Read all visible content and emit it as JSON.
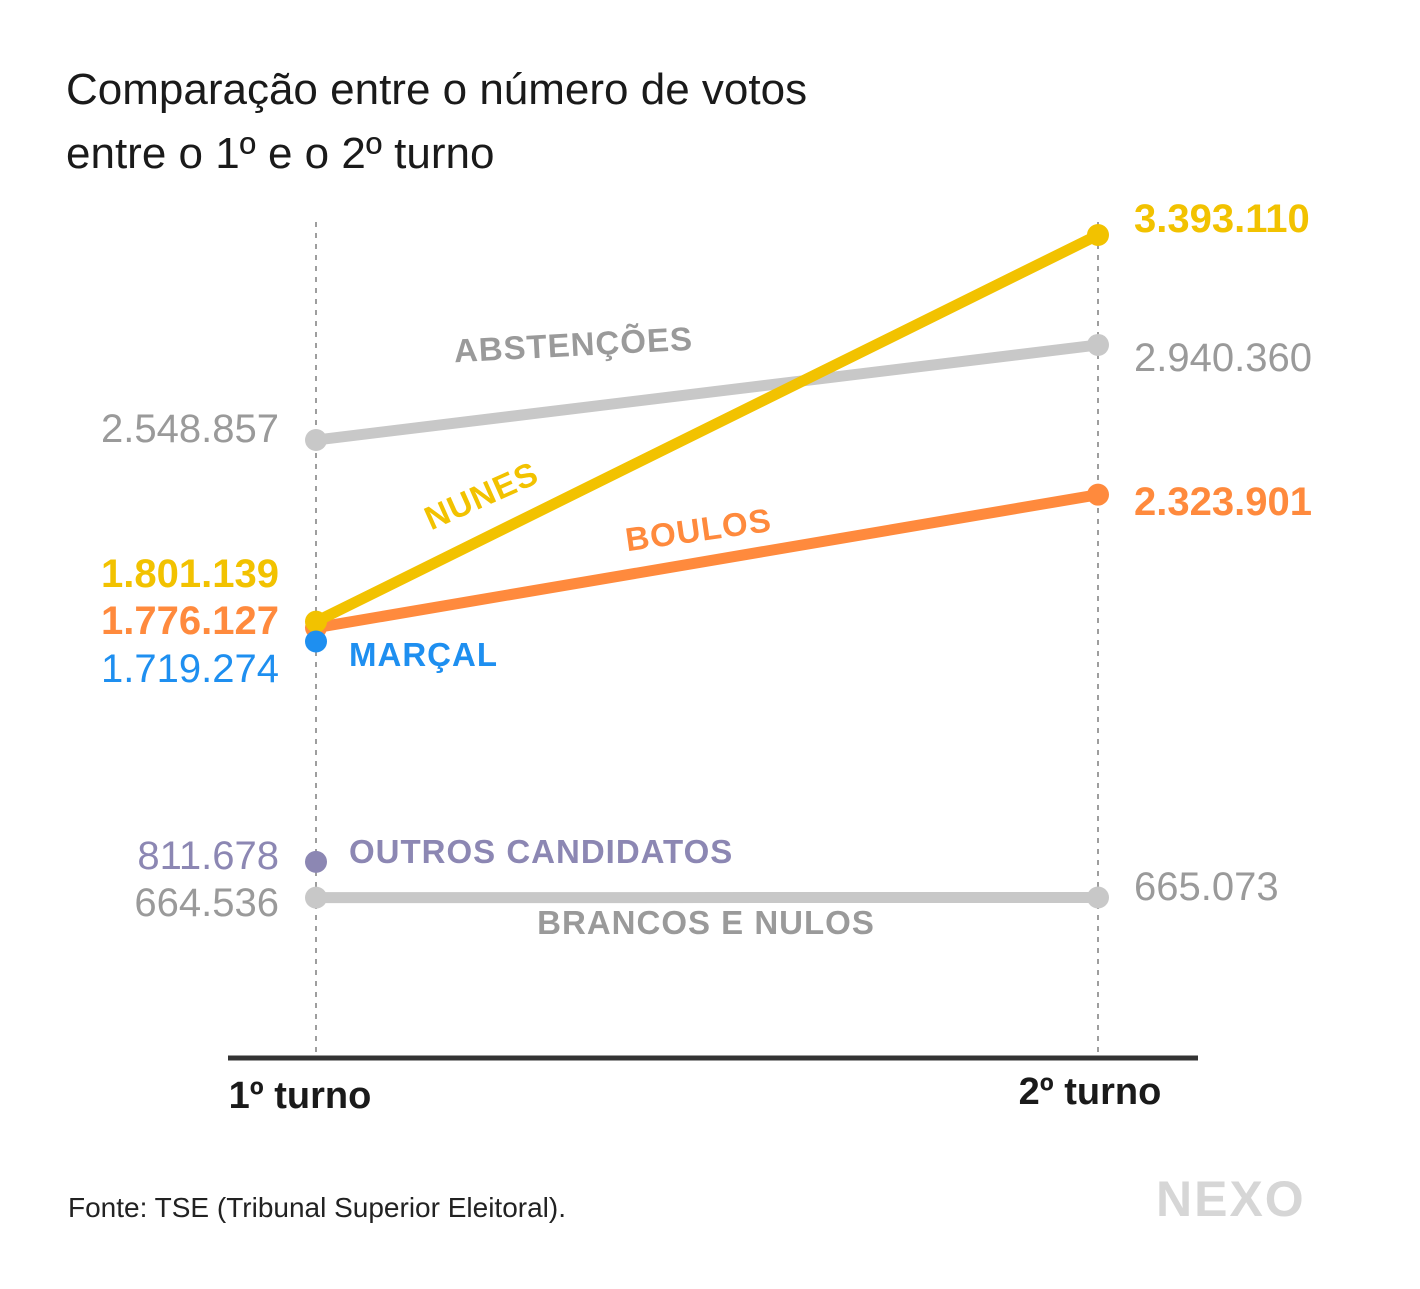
{
  "title": {
    "line1": "Comparação entre o número de votos",
    "line2": "entre o 1º e o 2º turno"
  },
  "source": "Fonte: TSE (Tribunal Superior Eleitoral).",
  "logo": "NEXO",
  "colors": {
    "nunes": "#f2c200",
    "boulos": "#ff8a3d",
    "marcal": "#1e8ff0",
    "outros": "#8c87b3",
    "gray": "#c8c8c8",
    "grayText": "#9a9a9a",
    "axis": "#333333"
  },
  "chart_data": {
    "type": "line",
    "title": "Comparação entre o número de votos entre o 1º e o 2º turno",
    "categories": [
      "1º turno",
      "2º turno"
    ],
    "ylim": [
      0,
      3500000
    ],
    "grid": false,
    "series": [
      {
        "key": "nunes",
        "name": "NUNES",
        "values": [
          1801139,
          3393110
        ],
        "labels": [
          "1.801.139",
          "3.393.110"
        ],
        "color": "#f2c200",
        "bold": true
      },
      {
        "key": "abstencoes",
        "name": "ABSTENÇÕES",
        "values": [
          2548857,
          2940360
        ],
        "labels": [
          "2.548.857",
          "2.940.360"
        ],
        "color": "#c8c8c8",
        "bold": false
      },
      {
        "key": "boulos",
        "name": "BOULOS",
        "values": [
          1776127,
          2323901
        ],
        "labels": [
          "1.776.127",
          "2.323.901"
        ],
        "color": "#ff8a3d",
        "bold": true
      },
      {
        "key": "marcal",
        "name": "MARÇAL",
        "values": [
          1719274,
          null
        ],
        "labels": [
          "1.719.274",
          null
        ],
        "color": "#1e8ff0",
        "bold": false
      },
      {
        "key": "outros",
        "name": "OUTROS CANDIDATOS",
        "values": [
          811678,
          null
        ],
        "labels": [
          "811.678",
          null
        ],
        "color": "#8c87b3",
        "bold": false
      },
      {
        "key": "brancos",
        "name": "BRANCOS E NULOS",
        "values": [
          664536,
          665073
        ],
        "labels": [
          "664.536",
          "665.073"
        ],
        "color": "#c8c8c8",
        "bold": false
      }
    ]
  }
}
